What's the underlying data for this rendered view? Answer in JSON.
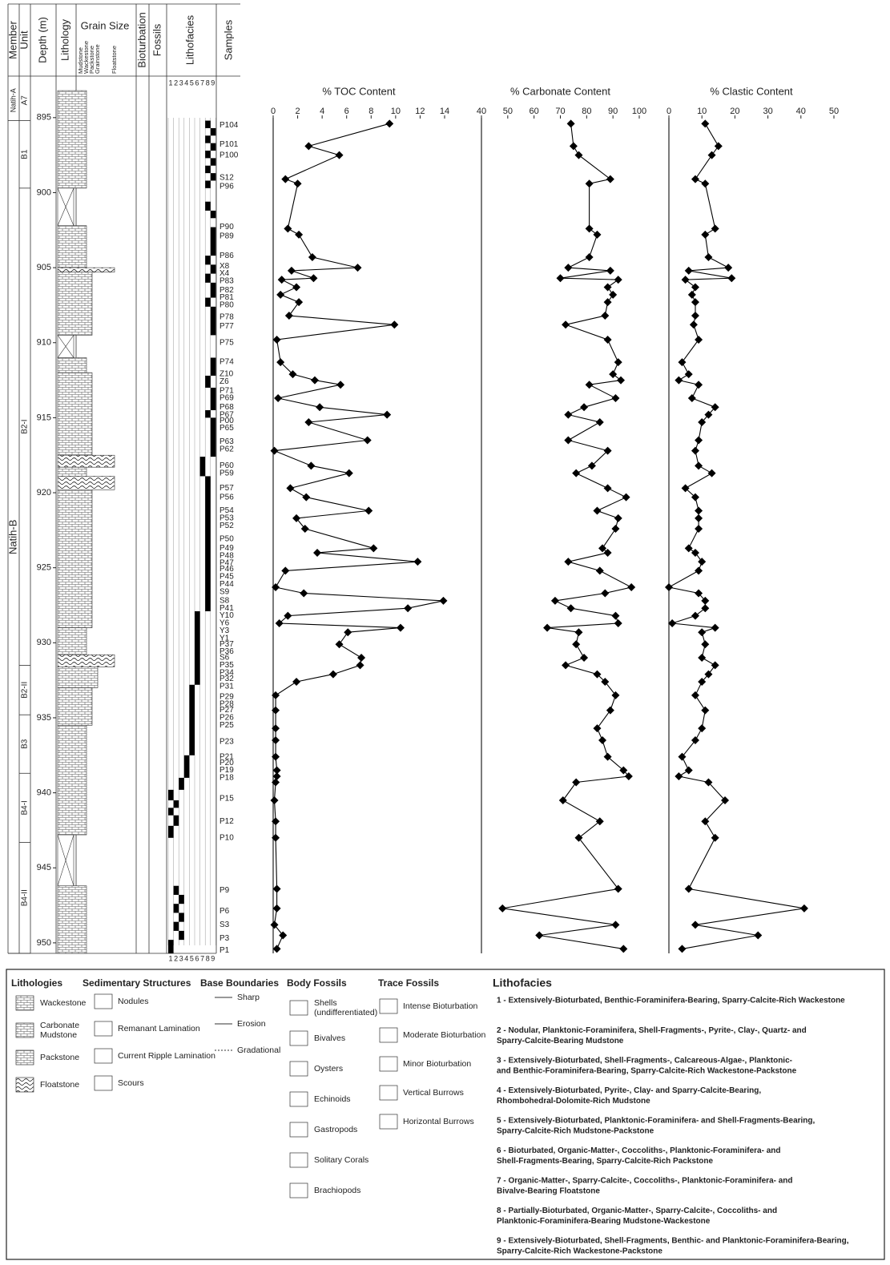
{
  "chart_data": [
    {
      "type": "line",
      "title": "% TOC Content",
      "color": "#000000",
      "xlim": [
        0,
        14
      ],
      "xticks": [
        0,
        2,
        4,
        6,
        8,
        10,
        12,
        14
      ],
      "ylim": [
        892.5,
        950.7
      ],
      "y": [
        895.4,
        896.9,
        897.5,
        899.1,
        899.4,
        902.4,
        902.8,
        904.3,
        905.0,
        905.2,
        905.7,
        905.8,
        906.3,
        906.8,
        907.3,
        908.2,
        908.8,
        909.8,
        911.3,
        912.1,
        912.5,
        912.8,
        913.7,
        914.3,
        914.8,
        915.3,
        916.5,
        917.2,
        918.2,
        918.7,
        919.7,
        920.3,
        921.2,
        921.7,
        922.4,
        923.7,
        924.0,
        924.6,
        925.2,
        926.3,
        926.7,
        927.2,
        927.7,
        928.2,
        928.7,
        929.0,
        929.3,
        930.1,
        931.0,
        931.5,
        932.1,
        932.6,
        933.5,
        934.5,
        935.7,
        936.5,
        937.6,
        938.5,
        938.9,
        939.3,
        940.5,
        941.9,
        943.0,
        946.4,
        947.7,
        948.8,
        949.5,
        950.4
      ],
      "values": [
        9.5,
        2.9,
        5.4,
        1.0,
        2.0,
        1.2,
        2.1,
        3.2,
        6.9,
        1.5,
        3.3,
        0.7,
        1.9,
        0.6,
        2.1,
        1.3,
        9.9,
        0.3,
        0.6,
        1.6,
        3.4,
        5.5,
        0.4,
        3.8,
        9.3,
        2.9,
        7.7,
        0.1,
        3.1,
        6.2,
        1.4,
        2.7,
        7.8,
        1.9,
        2.6,
        8.2,
        3.6,
        11.8,
        1.0,
        0.2,
        2.5,
        13.9,
        11.0,
        1.2,
        0.5,
        10.4,
        6.1,
        5.4,
        7.2,
        7.1,
        4.9,
        1.9,
        0.2,
        0.2,
        0.2,
        0.2,
        0.2,
        0.3,
        0.3,
        0.2,
        0.1,
        0.2,
        0.2,
        0.3,
        0.3,
        0.1,
        0.8,
        0.3
      ]
    },
    {
      "type": "line",
      "title": "% Carbonate Content",
      "color": "#000000",
      "xlim": [
        40,
        100
      ],
      "xticks": [
        40,
        50,
        60,
        70,
        80,
        90,
        100
      ],
      "ylim": [
        892.5,
        950.7
      ],
      "y": [
        895.4,
        896.9,
        897.5,
        899.1,
        899.4,
        902.4,
        902.8,
        904.3,
        905.0,
        905.2,
        905.7,
        905.8,
        906.3,
        906.8,
        907.3,
        908.2,
        908.8,
        909.8,
        911.3,
        912.1,
        912.5,
        912.8,
        913.7,
        914.3,
        914.8,
        915.3,
        916.5,
        917.2,
        918.2,
        918.7,
        919.7,
        920.3,
        921.2,
        921.7,
        922.4,
        923.7,
        924.0,
        924.6,
        925.2,
        926.3,
        926.7,
        927.2,
        927.7,
        928.2,
        928.7,
        929.0,
        929.3,
        930.1,
        931.0,
        931.5,
        932.1,
        932.6,
        933.5,
        934.5,
        935.7,
        936.5,
        937.6,
        938.5,
        938.9,
        939.3,
        940.5,
        941.9,
        943.0,
        946.4,
        947.7,
        948.8,
        949.5,
        950.4
      ],
      "values": [
        74,
        75,
        77,
        89,
        81,
        81,
        84,
        81,
        73,
        89,
        70,
        92,
        88,
        90,
        88,
        87,
        72,
        88,
        92,
        90,
        93,
        81,
        91,
        79,
        73,
        85,
        73,
        88,
        82,
        76,
        88,
        95,
        84,
        92,
        91,
        86,
        88,
        73,
        85,
        97,
        87,
        68,
        74,
        91,
        92,
        65,
        77,
        76,
        79,
        72,
        84,
        87,
        91,
        89,
        84,
        86,
        88,
        94,
        96,
        76,
        71,
        85,
        77,
        92,
        48,
        91,
        62,
        94
      ]
    },
    {
      "type": "line",
      "title": "% Clastic Content",
      "color": "#000000",
      "xlim": [
        0,
        50
      ],
      "xticks": [
        0,
        10,
        20,
        30,
        40,
        50
      ],
      "ylim": [
        892.5,
        950.7
      ],
      "y": [
        895.4,
        896.9,
        897.5,
        899.1,
        899.4,
        902.4,
        902.8,
        904.3,
        905.0,
        905.2,
        905.7,
        905.8,
        906.3,
        906.8,
        907.3,
        908.2,
        908.8,
        909.8,
        911.3,
        912.1,
        912.5,
        912.8,
        913.7,
        914.3,
        914.8,
        915.3,
        916.5,
        917.2,
        918.2,
        918.7,
        919.7,
        920.3,
        921.2,
        921.7,
        922.4,
        923.7,
        924.0,
        924.6,
        925.2,
        926.3,
        926.7,
        927.2,
        927.7,
        928.2,
        928.7,
        929.0,
        929.3,
        930.1,
        931.0,
        931.5,
        932.1,
        932.6,
        933.5,
        934.5,
        935.7,
        936.5,
        937.6,
        938.5,
        938.9,
        939.3,
        940.5,
        941.9,
        943.0,
        946.4,
        947.7,
        948.8,
        949.5,
        950.4
      ],
      "values": [
        11,
        15,
        13,
        8,
        11,
        14,
        11,
        12,
        18,
        6,
        19,
        5,
        8,
        7,
        8,
        8,
        7.5,
        9,
        4,
        6,
        3,
        9,
        7,
        14,
        12,
        10,
        9,
        8,
        9,
        13,
        5,
        8,
        9,
        9,
        9,
        6,
        8,
        10,
        9,
        0,
        9,
        11,
        11,
        8,
        1,
        14,
        10,
        11,
        10,
        14,
        12,
        10,
        8,
        11,
        10,
        8,
        4,
        6,
        3,
        12,
        17,
        11,
        14,
        6,
        41,
        8,
        27,
        4
      ]
    }
  ],
  "log": {
    "headers": {
      "member": "Member",
      "unit": "Unit",
      "depth": "Depth (m)",
      "lithology": "Lithology",
      "grain_size": "Grain Size",
      "bioturbation": "Bioturbation",
      "fossils": "Fossils",
      "lithofacies": "Lithofacies",
      "samples": "Samples"
    },
    "grain_classes": [
      "Mudstone",
      "Wackestone",
      "Packstone",
      "Grainstone",
      "Floatstone"
    ],
    "lithofacies_numbers": [
      1,
      2,
      3,
      4,
      5,
      6,
      7,
      8,
      9
    ],
    "ylim": [
      892.5,
      950.7
    ],
    "yticks": [
      895,
      900,
      905,
      910,
      915,
      920,
      925,
      930,
      935,
      940,
      945,
      950
    ],
    "members": [
      {
        "name": "Natih-A",
        "top": 892.5,
        "bottom": 895.2
      },
      {
        "name": "Natih-B",
        "top": 895.2,
        "bottom": 950.7
      }
    ],
    "units": [
      {
        "name": "A7",
        "top": 892.5,
        "bottom": 895.2
      },
      {
        "name": "B1",
        "top": 895.2,
        "bottom": 899.7
      },
      {
        "name": "B2-I",
        "top": 899.7,
        "bottom": 931.5
      },
      {
        "name": "B2-II",
        "top": 931.5,
        "bottom": 934.8
      },
      {
        "name": "B3",
        "top": 934.8,
        "bottom": 938.7
      },
      {
        "name": "B4-I",
        "top": 938.7,
        "bottom": 943.3
      },
      {
        "name": "B4-II",
        "top": 943.3,
        "bottom": 950.7
      }
    ],
    "gaps": [
      [
        899.7,
        902.2
      ],
      [
        909.5,
        911.0
      ],
      [
        942.8,
        946.2
      ]
    ],
    "grain_size": [
      [
        893.2,
        899.7,
        2
      ],
      [
        902.2,
        905.0,
        2
      ],
      [
        905.0,
        905.3,
        5
      ],
      [
        905.3,
        909.5,
        3
      ],
      [
        911.0,
        912.0,
        2
      ],
      [
        912.0,
        917.5,
        3
      ],
      [
        917.5,
        918.3,
        5
      ],
      [
        918.3,
        918.9,
        2
      ],
      [
        918.9,
        919.8,
        5
      ],
      [
        919.8,
        929.0,
        3
      ],
      [
        929.0,
        930.8,
        2
      ],
      [
        930.8,
        931.6,
        5
      ],
      [
        931.6,
        933.0,
        4
      ],
      [
        933.0,
        935.5,
        3
      ],
      [
        935.5,
        942.8,
        2
      ],
      [
        946.2,
        950.7,
        2
      ]
    ],
    "lithofacies": [
      [
        895.2,
        895.7,
        8
      ],
      [
        895.7,
        896.2,
        9
      ],
      [
        896.2,
        896.7,
        8
      ],
      [
        896.7,
        897.2,
        9
      ],
      [
        897.2,
        897.7,
        8
      ],
      [
        897.7,
        898.2,
        9
      ],
      [
        898.2,
        898.7,
        8
      ],
      [
        898.7,
        899.2,
        9
      ],
      [
        899.2,
        899.7,
        8
      ],
      [
        900.6,
        901.2,
        8
      ],
      [
        901.2,
        901.7,
        9
      ],
      [
        902.3,
        904.2,
        9
      ],
      [
        904.2,
        904.8,
        8
      ],
      [
        904.8,
        905.4,
        9
      ],
      [
        905.4,
        906.0,
        8
      ],
      [
        906.0,
        907.0,
        9
      ],
      [
        907.0,
        907.6,
        8
      ],
      [
        907.6,
        909.5,
        9
      ],
      [
        911.0,
        912.2,
        9
      ],
      [
        912.2,
        913.0,
        8
      ],
      [
        913.0,
        914.5,
        9
      ],
      [
        914.5,
        915.0,
        8
      ],
      [
        915.0,
        917.6,
        9
      ],
      [
        917.6,
        918.9,
        7
      ],
      [
        918.9,
        927.9,
        8
      ],
      [
        927.9,
        932.8,
        6
      ],
      [
        932.8,
        937.5,
        5
      ],
      [
        937.5,
        939.0,
        4
      ],
      [
        939.0,
        939.8,
        3
      ],
      [
        939.8,
        940.5,
        1
      ],
      [
        940.5,
        941.0,
        2
      ],
      [
        941.0,
        941.5,
        1
      ],
      [
        941.5,
        942.2,
        2
      ],
      [
        942.2,
        943.0,
        1
      ],
      [
        946.2,
        946.8,
        2
      ],
      [
        946.8,
        947.4,
        3
      ],
      [
        947.4,
        948.0,
        2
      ],
      [
        948.0,
        948.6,
        3
      ],
      [
        948.6,
        949.2,
        2
      ],
      [
        949.2,
        949.8,
        3
      ],
      [
        949.8,
        950.7,
        1
      ]
    ],
    "samples": [
      {
        "name": "P104",
        "depth": 895.5
      },
      {
        "name": "P101",
        "depth": 896.8
      },
      {
        "name": "P100",
        "depth": 897.5
      },
      {
        "name": "S12",
        "depth": 899.0
      },
      {
        "name": "P96",
        "depth": 899.6
      },
      {
        "name": "P90",
        "depth": 902.3
      },
      {
        "name": "P89",
        "depth": 902.9
      },
      {
        "name": "P86",
        "depth": 904.2
      },
      {
        "name": "X8",
        "depth": 904.9
      },
      {
        "name": "X4",
        "depth": 905.4
      },
      {
        "name": "P83",
        "depth": 905.9
      },
      {
        "name": "P82",
        "depth": 906.5
      },
      {
        "name": "P81",
        "depth": 907.0
      },
      {
        "name": "P80",
        "depth": 907.5
      },
      {
        "name": "P78",
        "depth": 908.3
      },
      {
        "name": "P77",
        "depth": 908.9
      },
      {
        "name": "P75",
        "depth": 910.0
      },
      {
        "name": "P74",
        "depth": 911.3
      },
      {
        "name": "Z10",
        "depth": 912.1
      },
      {
        "name": "Z6",
        "depth": 912.6
      },
      {
        "name": "P71",
        "depth": 913.2
      },
      {
        "name": "P69",
        "depth": 913.7
      },
      {
        "name": "P68",
        "depth": 914.3
      },
      {
        "name": "P67",
        "depth": 914.8
      },
      {
        "name": "P00",
        "depth": 915.2
      },
      {
        "name": "P65",
        "depth": 915.7
      },
      {
        "name": "P63",
        "depth": 916.6
      },
      {
        "name": "P62",
        "depth": 917.1
      },
      {
        "name": "P60",
        "depth": 918.2
      },
      {
        "name": "P59",
        "depth": 918.7
      },
      {
        "name": "P57",
        "depth": 919.7
      },
      {
        "name": "P56",
        "depth": 920.3
      },
      {
        "name": "P54",
        "depth": 921.2
      },
      {
        "name": "P53",
        "depth": 921.7
      },
      {
        "name": "P52",
        "depth": 922.2
      },
      {
        "name": "P50",
        "depth": 923.1
      },
      {
        "name": "P49",
        "depth": 923.7
      },
      {
        "name": "P48",
        "depth": 924.2
      },
      {
        "name": "P47",
        "depth": 924.7
      },
      {
        "name": "P46",
        "depth": 925.1
      },
      {
        "name": "P45",
        "depth": 925.6
      },
      {
        "name": "P44",
        "depth": 926.1
      },
      {
        "name": "S9",
        "depth": 926.6
      },
      {
        "name": "S8",
        "depth": 927.2
      },
      {
        "name": "P41",
        "depth": 927.7
      },
      {
        "name": "Y10",
        "depth": 928.2
      },
      {
        "name": "Y6",
        "depth": 928.7
      },
      {
        "name": "Y3",
        "depth": 929.2
      },
      {
        "name": "Y1",
        "depth": 929.7
      },
      {
        "name": "P37",
        "depth": 930.1
      },
      {
        "name": "P36",
        "depth": 930.6
      },
      {
        "name": "S6",
        "depth": 931.0
      },
      {
        "name": "P35",
        "depth": 931.5
      },
      {
        "name": "P34",
        "depth": 932.0
      },
      {
        "name": "P32",
        "depth": 932.4
      },
      {
        "name": "P31",
        "depth": 932.9
      },
      {
        "name": "P29",
        "depth": 933.6
      },
      {
        "name": "P28",
        "depth": 934.1
      },
      {
        "name": "P27",
        "depth": 934.5
      },
      {
        "name": "P26",
        "depth": 935.0
      },
      {
        "name": "P25",
        "depth": 935.5
      },
      {
        "name": "P23",
        "depth": 936.6
      },
      {
        "name": "P21",
        "depth": 937.6
      },
      {
        "name": "P20",
        "depth": 938.0
      },
      {
        "name": "P19",
        "depth": 938.5
      },
      {
        "name": "P18",
        "depth": 939.0
      },
      {
        "name": "P15",
        "depth": 940.4
      },
      {
        "name": "P12",
        "depth": 941.9
      },
      {
        "name": "P10",
        "depth": 943.0
      },
      {
        "name": "P9",
        "depth": 946.5
      },
      {
        "name": "P6",
        "depth": 947.9
      },
      {
        "name": "S3",
        "depth": 948.8
      },
      {
        "name": "P3",
        "depth": 949.7
      },
      {
        "name": "P1",
        "depth": 950.5
      }
    ]
  },
  "legend": {
    "lithologies": {
      "title": "Lithologies",
      "items": [
        [
          "Wackestone"
        ],
        [
          "Carbonate",
          "Mudstone"
        ],
        [
          "Packstone"
        ],
        [
          "Floatstone"
        ]
      ]
    },
    "sedimentary_structures": {
      "title": "Sedimentary Structures",
      "items": [
        [
          "Nodules"
        ],
        [
          "Remanant Lamination"
        ],
        [
          "Current Ripple Lamination"
        ],
        [
          "Scours"
        ]
      ]
    },
    "base_boundaries": {
      "title": "Base Boundaries",
      "items": [
        [
          "Sharp"
        ],
        [
          "Erosion"
        ],
        [
          "Gradational"
        ]
      ]
    },
    "body_fossils": {
      "title": "Body Fossils",
      "items": [
        [
          "Shells",
          "(undifferentiated)"
        ],
        [
          "Bivalves"
        ],
        [
          "Oysters"
        ],
        [
          "Echinoids"
        ],
        [
          "Gastropods"
        ],
        [
          "Solitary Corals"
        ],
        [
          "Brachiopods"
        ]
      ]
    },
    "trace_fossils": {
      "title": "Trace Fossils",
      "items": [
        [
          "Intense Bioturbation"
        ],
        [
          "Moderate Bioturbation"
        ],
        [
          "Minor Bioturbation"
        ],
        [
          "Vertical Burrows"
        ],
        [
          "Horizontal Burrows"
        ]
      ]
    },
    "lithofacies": {
      "title": "Lithofacies",
      "items": [
        [
          "1 - Extensively-Bioturbated, Benthic-Foraminifera-Bearing, Sparry-Calcite-Rich Wackestone"
        ],
        [
          "2 - Nodular, Planktonic-Foraminifera, Shell-Fragments-, Pyrite-, Clay-, Quartz- and",
          "Sparry-Calcite-Bearing Mudstone"
        ],
        [
          "3 - Extensively-Bioturbated, Shell-Fragments-, Calcareous-Algae-, Planktonic-",
          "and Benthic-Foraminifera-Bearing, Sparry-Calcite-Rich Wackestone-Packstone"
        ],
        [
          "4 - Extensively-Bioturbated, Pyrite-, Clay- and Sparry-Calcite-Bearing,",
          "Rhombohedral-Dolomite-Rich Mudstone"
        ],
        [
          "5 - Extensively-Bioturbated, Planktonic-Foraminifera- and Shell-Fragments-Bearing,",
          "Sparry-Calcite-Rich Mudstone-Packstone"
        ],
        [
          "6 - Bioturbated, Organic-Matter-, Coccoliths-, Planktonic-Foraminifera- and",
          "Shell-Fragments-Bearing, Sparry-Calcite-Rich Packstone"
        ],
        [
          "7 - Organic-Matter-, Sparry-Calcite-, Coccoliths-, Planktonic-Foraminifera- and",
          "Bivalve-Bearing Floatstone"
        ],
        [
          "8 - Partially-Bioturbated, Organic-Matter-, Sparry-Calcite-, Coccoliths- and",
          "Planktonic-Foraminifera-Bearing Mudstone-Wackestone"
        ],
        [
          "9 - Extensively-Bioturbated, Shell-Fragments, Benthic- and Planktonic-Foraminifera-Bearing,",
          "Sparry-Calcite-Rich Wackestone-Packstone"
        ]
      ]
    }
  }
}
